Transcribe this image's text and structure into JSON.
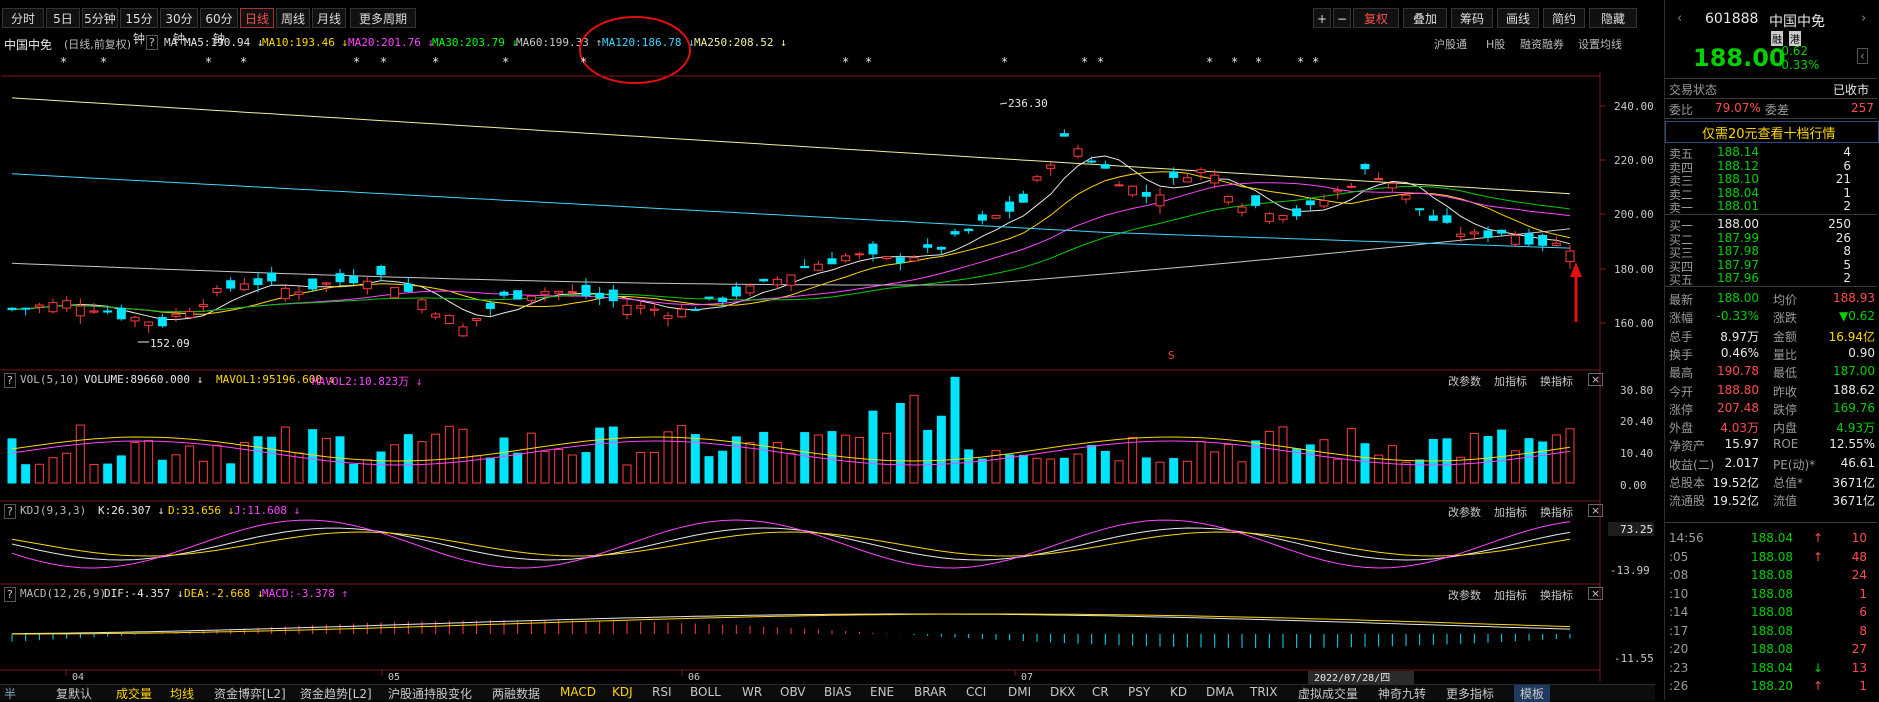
{
  "toolbar": {
    "periods": [
      "分时",
      "5日",
      "5分钟",
      "15分钟",
      "30分钟",
      "60分钟",
      "日线",
      "周线",
      "月线",
      "更多周期"
    ],
    "active_period": "日线",
    "right_buttons": [
      "+",
      "−",
      "复权",
      "叠加",
      "筹码",
      "画线",
      "简约",
      "隐藏"
    ]
  },
  "infobar": {
    "stock_name": "中国中免",
    "adjust": "(日线,前复权)",
    "help": "?",
    "ma_prefix": "MA",
    "ma5": "MA5:190.94 ↓",
    "ma10": "MA10:193.46 ↓",
    "ma20": "MA20:201.76 ↓",
    "ma30": "MA30:203.79 ↓",
    "ma60": "MA60:199.33 ↑",
    "ma120": "MA120:186.78 ↓",
    "ma250": "MA250:208.52 ↓",
    "links": [
      "沪股通",
      "H股",
      "融资融券",
      "设置均线"
    ],
    "annotation_circle": "MA120 highlighted with red ellipse"
  },
  "price_axis": {
    "ticks": [
      "240.00",
      "220.00",
      "200.00",
      "180.00",
      "160.00"
    ]
  },
  "price_labels": {
    "high": "236.30",
    "low": "152.09"
  },
  "vol_panel": {
    "title": "VOL(5,10)",
    "volume": "VOLUME:89660.000 ↓",
    "mavol1": "MAVOL1:95196.600 ↓",
    "mavol2": "MAVOL2:10.823万 ↓",
    "actions": [
      "改参数",
      "加指标",
      "换指标"
    ],
    "axis": [
      "30.80",
      "20.40",
      "10.40",
      "0.00"
    ]
  },
  "kdj_panel": {
    "title": "KDJ(9,3,3)",
    "k": "K:26.307 ↓",
    "d": "D:33.656 ↓",
    "j": "J:11.608 ↓",
    "actions": [
      "改参数",
      "加指标",
      "换指标"
    ],
    "axis": [
      "73.25",
      "-13.99"
    ]
  },
  "macd_panel": {
    "title": "MACD(12,26,9)",
    "dif": "DIF:-4.357 ↓",
    "dea": "DEA:-2.668 ↓",
    "macd": "MACD:-3.378 ↑",
    "actions": [
      "改参数",
      "加指标",
      "换指标"
    ],
    "axis": [
      "-11.55"
    ]
  },
  "date_axis": {
    "labels": [
      "04",
      "05",
      "06",
      "07"
    ],
    "cursor_date": "2022/07/28/四"
  },
  "bottom_tabs": [
    "半",
    "复默认",
    "成交量",
    "均线",
    "资金博弈[L2]",
    "资金趋势[L2]",
    "沪股通持股变化",
    "两融数据",
    "MACD",
    "KDJ",
    "RSI",
    "BOLL",
    "WR",
    "OBV",
    "BIAS",
    "ENE",
    "BRAR",
    "CCI",
    "DMI",
    "DKX",
    "CR",
    "PSY",
    "KD",
    "DMA",
    "TRIX",
    "虚拟成交量",
    "神奇九转",
    "更多指标",
    "模板"
  ],
  "quote": {
    "code": "601888",
    "name": "中国中免",
    "tags": [
      "融",
      "港"
    ],
    "price": "188.00",
    "change": "-0.62",
    "change_pct": "-0.33%",
    "status_label": "交易状态",
    "status_value": "已收市",
    "weibi_label": "委比",
    "weibi_value": "79.07%",
    "weicha_label": "委差",
    "weicha_value": "257",
    "promo": "仅需20元查看十档行情",
    "asks": [
      {
        "label": "卖五",
        "price": "188.14",
        "vol": "4"
      },
      {
        "label": "卖四",
        "price": "188.12",
        "vol": "6"
      },
      {
        "label": "卖三",
        "price": "188.10",
        "vol": "21"
      },
      {
        "label": "卖二",
        "price": "188.04",
        "vol": "1"
      },
      {
        "label": "卖一",
        "price": "188.01",
        "vol": "2"
      }
    ],
    "bids": [
      {
        "label": "买一",
        "price": "188.00",
        "vol": "250"
      },
      {
        "label": "买二",
        "price": "187.99",
        "vol": "26"
      },
      {
        "label": "买三",
        "price": "187.98",
        "vol": "8"
      },
      {
        "label": "买四",
        "price": "187.97",
        "vol": "5"
      },
      {
        "label": "买五",
        "price": "187.96",
        "vol": "2"
      }
    ],
    "stats": [
      {
        "l1": "最新",
        "v1": "188.00",
        "l2": "均价",
        "v2": "188.93"
      },
      {
        "l1": "涨幅",
        "v1": "-0.33%",
        "l2": "涨跌",
        "v2": "▼0.62"
      },
      {
        "l1": "总手",
        "v1": "8.97万",
        "l2": "金额",
        "v2": "16.94亿"
      },
      {
        "l1": "换手",
        "v1": "0.46%",
        "l2": "量比",
        "v2": "0.90"
      },
      {
        "l1": "最高",
        "v1": "190.78",
        "l2": "最低",
        "v2": "187.00"
      },
      {
        "l1": "今开",
        "v1": "188.80",
        "l2": "昨收",
        "v2": "188.62"
      },
      {
        "l1": "涨停",
        "v1": "207.48",
        "l2": "跌停",
        "v2": "169.76"
      },
      {
        "l1": "外盘",
        "v1": "4.03万",
        "l2": "内盘",
        "v2": "4.93万"
      },
      {
        "l1": "净资产",
        "v1": "15.97",
        "l2": "ROE",
        "v2": "12.55%"
      },
      {
        "l1": "收益(二)",
        "v1": "2.017",
        "l2": "PE(动)*",
        "v2": "46.61"
      },
      {
        "l1": "总股本",
        "v1": "19.52亿",
        "l2": "总值*",
        "v2": "3671亿"
      },
      {
        "l1": "流通股",
        "v1": "19.52亿",
        "l2": "流值",
        "v2": "3671亿"
      }
    ],
    "ticks": [
      {
        "time": "14:56",
        "price": "188.04",
        "arrow": "↑",
        "vol": "10"
      },
      {
        "time": ":05",
        "price": "188.08",
        "arrow": "↑",
        "vol": "48"
      },
      {
        "time": ":08",
        "price": "188.08",
        "arrow": "",
        "vol": "24"
      },
      {
        "time": ":10",
        "price": "188.08",
        "arrow": "",
        "vol": "1"
      },
      {
        "time": ":14",
        "price": "188.08",
        "arrow": "",
        "vol": "6"
      },
      {
        "time": ":17",
        "price": "188.08",
        "arrow": "",
        "vol": "8"
      },
      {
        "time": ":20",
        "price": "188.08",
        "arrow": "",
        "vol": "27"
      },
      {
        "time": ":23",
        "price": "188.04",
        "arrow": "↓",
        "vol": "13"
      },
      {
        "time": ":26",
        "price": "188.20",
        "arrow": "↑",
        "vol": "1"
      }
    ]
  }
}
